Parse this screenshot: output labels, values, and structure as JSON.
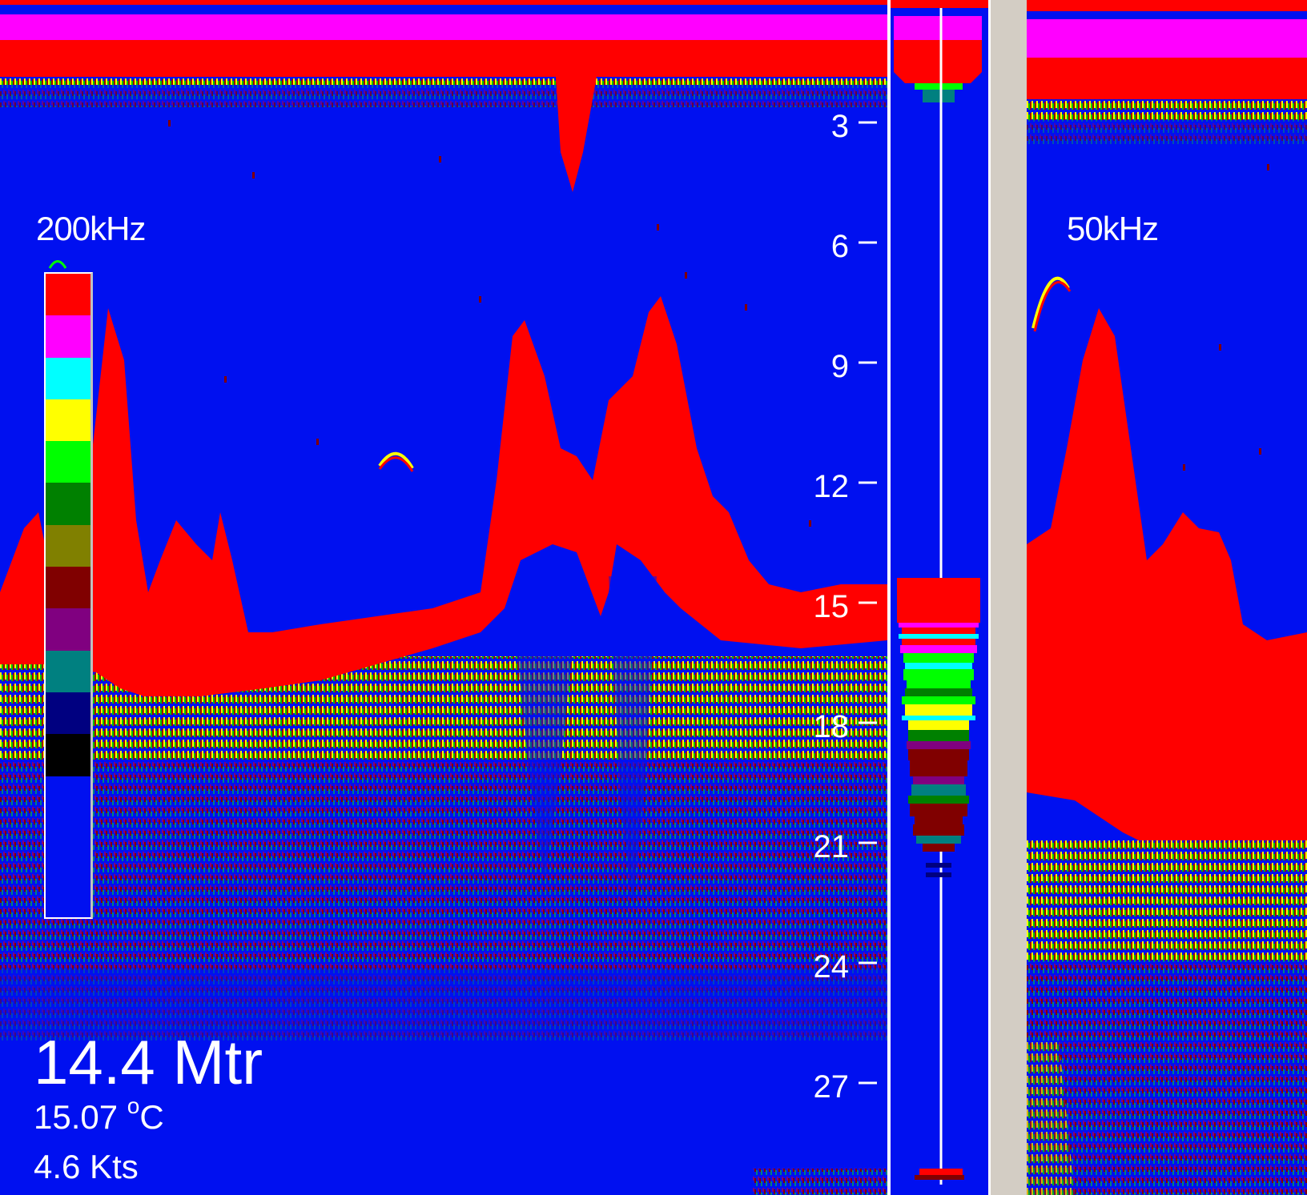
{
  "left_panel": {
    "frequency_label": "200kHz",
    "readout": {
      "depth": "14.4 Mtr",
      "temperature_value": "15.07",
      "temperature_unit_degree": "o",
      "temperature_unit": "C",
      "speed": "4.6 Kts"
    }
  },
  "right_panel": {
    "frequency_label": "50kHz"
  },
  "depth_scale": {
    "labels": [
      "3",
      "6",
      "9",
      "12",
      "15",
      "18",
      "21",
      "24",
      "27"
    ]
  },
  "color_scale": {
    "colors": [
      "#ff0000",
      "#ff00ff",
      "#00ffff",
      "#ffff00",
      "#00ff00",
      "#008000",
      "#808000",
      "#800000",
      "#800080",
      "#008080",
      "#000080",
      "#000000",
      "#0010f0"
    ]
  },
  "colors": {
    "background": "#0010f0",
    "strong_echo": "#ff0000",
    "surface_band": "#ff00ff",
    "divider": "#d3cdc4"
  }
}
